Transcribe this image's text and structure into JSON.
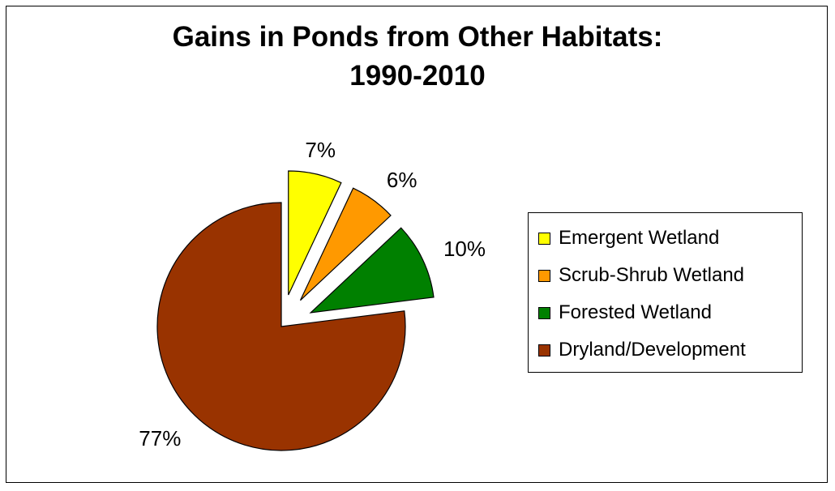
{
  "chart_data": {
    "type": "pie",
    "title": "Gains in Ponds from Other Habitats:",
    "subtitle": "1990-2010",
    "slices": [
      {
        "name": "Emergent Wetland",
        "value": 7,
        "label": "7%",
        "color": "#ffff00",
        "exploded": true
      },
      {
        "name": "Scrub-Shrub Wetland",
        "value": 6,
        "label": "6%",
        "color": "#ff9900",
        "exploded": true
      },
      {
        "name": "Forested Wetland",
        "value": 10,
        "label": "10%",
        "color": "#008000",
        "exploded": true
      },
      {
        "name": "Dryland/Development",
        "value": 77,
        "label": "77%",
        "color": "#993300",
        "exploded": false
      }
    ],
    "legend": {
      "placement": "right",
      "entries": [
        "Emergent Wetland",
        "Scrub-Shrub Wetland",
        "Forested Wetland",
        "Dryland/Development"
      ]
    }
  }
}
